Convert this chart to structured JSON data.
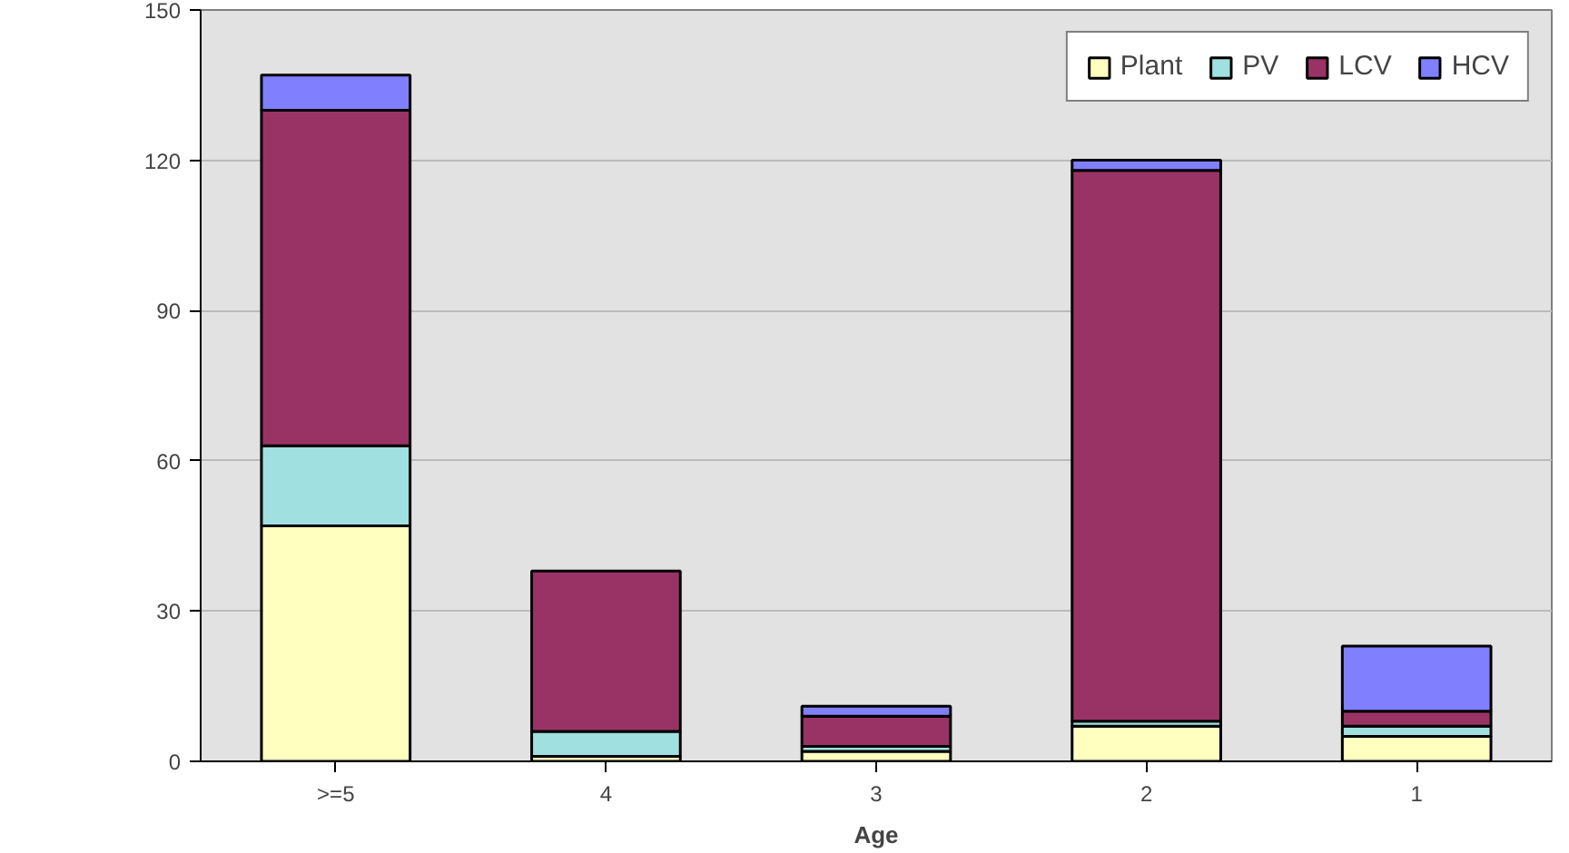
{
  "chart_data": {
    "type": "bar",
    "stacked": true,
    "xlabel": "Age",
    "categories": [
      ">=5",
      "4",
      "3",
      "2",
      "1"
    ],
    "series": [
      {
        "name": "Plant",
        "color": "#ffffc0",
        "values": [
          47,
          1,
          2,
          7,
          5
        ]
      },
      {
        "name": "PV",
        "color": "#a0e0e0",
        "values": [
          16,
          5,
          1,
          1,
          2
        ]
      },
      {
        "name": "LCV",
        "color": "#993366",
        "values": [
          67,
          32,
          6,
          110,
          3
        ]
      },
      {
        "name": "HCV",
        "color": "#8080ff",
        "values": [
          7,
          0,
          2,
          2,
          13
        ]
      }
    ],
    "ylim": [
      0,
      150
    ],
    "yticks": [
      0,
      30,
      60,
      90,
      120,
      150
    ],
    "grid": "y",
    "legend": "top right"
  }
}
